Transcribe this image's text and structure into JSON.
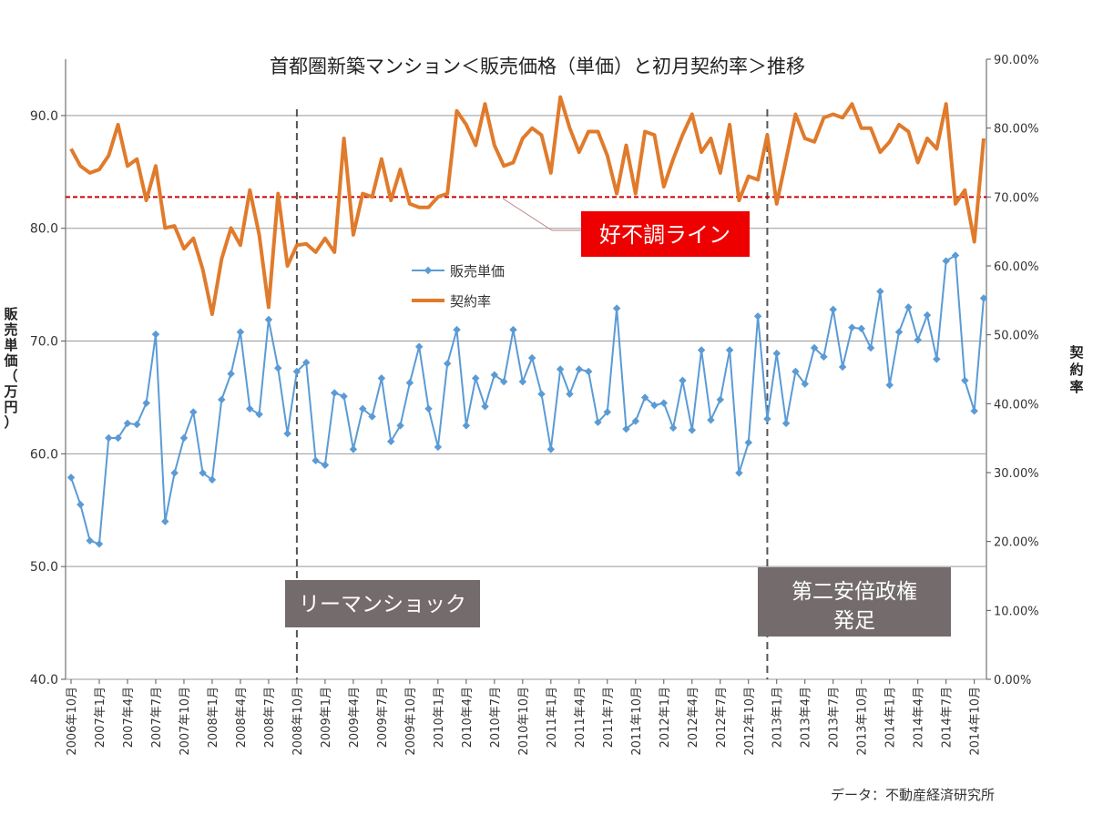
{
  "chart_data": {
    "type": "line",
    "title": "首都圏新築マンション＜販売価格（単価）と初月契約率＞推移",
    "ylabel_left": "販売単価（万円）",
    "ylabel_right": "契約率",
    "ylim_left": [
      40,
      95
    ],
    "ylim_right": [
      0,
      0.9
    ],
    "yticks_left": [
      "40.0",
      "50.0",
      "60.0",
      "70.0",
      "80.0",
      "90.0"
    ],
    "yticks_right": [
      "0.00%",
      "10.00%",
      "20.00%",
      "30.00%",
      "40.00%",
      "50.00%",
      "60.00%",
      "70.00%",
      "80.00%",
      "90.00%"
    ],
    "xticks": [
      "2006年10月",
      "2007年1月",
      "2007年4月",
      "2007年7月",
      "2007年10月",
      "2008年1月",
      "2008年4月",
      "2008年7月",
      "2008年10月",
      "2009年1月",
      "2009年4月",
      "2009年7月",
      "2009年10月",
      "2010年1月",
      "2010年4月",
      "2010年7月",
      "2010年10月",
      "2011年1月",
      "2011年4月",
      "2011年7月",
      "2011年10月",
      "2012年1月",
      "2012年4月",
      "2012年7月",
      "2012年10月",
      "2013年1月",
      "2013年4月",
      "2013年7月",
      "2013年10月",
      "2014年1月",
      "2014年4月",
      "2014年7月",
      "2014年10月"
    ],
    "grid": true,
    "series": [
      {
        "name": "販売単価",
        "axis": "left",
        "color": "#5b9bd5",
        "values": [
          57.9,
          55.5,
          52.3,
          52.0,
          61.4,
          61.4,
          62.7,
          62.6,
          64.5,
          70.6,
          54.0,
          58.3,
          61.4,
          63.7,
          58.3,
          57.7,
          64.8,
          67.1,
          70.8,
          64.0,
          63.5,
          71.9,
          67.6,
          61.8,
          67.3,
          68.1,
          59.4,
          59.0,
          65.4,
          65.1,
          60.4,
          64.0,
          63.3,
          66.7,
          61.1,
          62.5,
          66.3,
          69.5,
          64.0,
          60.6,
          68.0,
          71.0,
          62.5,
          66.7,
          64.2,
          67.0,
          66.4,
          71.0,
          66.4,
          68.5,
          65.3,
          60.4,
          67.5,
          65.3,
          67.5,
          67.3,
          62.8,
          63.7,
          72.9,
          62.2,
          62.9,
          65.0,
          64.3,
          64.5,
          62.3,
          66.5,
          62.1,
          69.2,
          63.0,
          64.8,
          69.2,
          58.3,
          61.0,
          72.2,
          63.1,
          68.9,
          62.7,
          67.3,
          66.2,
          69.4,
          68.6,
          72.8,
          67.7,
          71.2,
          71.1,
          69.4,
          74.4,
          66.1,
          70.8,
          73.0,
          70.1,
          72.3,
          68.4,
          77.1,
          77.6,
          66.5,
          63.8,
          73.8
        ]
      },
      {
        "name": "契約率",
        "axis": "right",
        "color": "#e07b2c",
        "values": [
          0.77,
          0.745,
          0.735,
          0.74,
          0.76,
          0.805,
          0.745,
          0.755,
          0.695,
          0.745,
          0.655,
          0.658,
          0.625,
          0.64,
          0.595,
          0.53,
          0.61,
          0.655,
          0.63,
          0.71,
          0.645,
          0.54,
          0.705,
          0.6,
          0.63,
          0.632,
          0.62,
          0.64,
          0.62,
          0.785,
          0.645,
          0.705,
          0.7,
          0.755,
          0.695,
          0.74,
          0.69,
          0.685,
          0.685,
          0.7,
          0.705,
          0.825,
          0.805,
          0.775,
          0.835,
          0.775,
          0.745,
          0.75,
          0.785,
          0.8,
          0.79,
          0.735,
          0.845,
          0.8,
          0.765,
          0.795,
          0.795,
          0.76,
          0.705,
          0.775,
          0.705,
          0.795,
          0.79,
          0.715,
          0.755,
          0.79,
          0.82,
          0.765,
          0.785,
          0.735,
          0.805,
          0.695,
          0.73,
          0.725,
          0.79,
          0.69,
          0.755,
          0.82,
          0.785,
          0.78,
          0.815,
          0.82,
          0.815,
          0.835,
          0.8,
          0.8,
          0.765,
          0.78,
          0.805,
          0.795,
          0.75,
          0.785,
          0.77,
          0.835,
          0.69,
          0.71,
          0.635,
          0.785
        ]
      }
    ],
    "reference_lines": [
      {
        "name": "好不調ライン",
        "axis": "right",
        "value": 0.7,
        "color": "#cc0000"
      }
    ],
    "vertical_markers": [
      {
        "label": "リーマンショック",
        "x": "2008年10月"
      },
      {
        "label": "第二安倍政権 発足",
        "x": "2012年12月"
      }
    ],
    "annotations": {
      "threshold_label": "好不調ライン",
      "lehman_label": "リーマンショック",
      "abe_label_line1": "第二安倍政権",
      "abe_label_line2": "発足"
    },
    "legend": {
      "position": "center",
      "entries": [
        "販売単価",
        "契約率"
      ]
    }
  },
  "source": "データ：不動産経済研究所"
}
